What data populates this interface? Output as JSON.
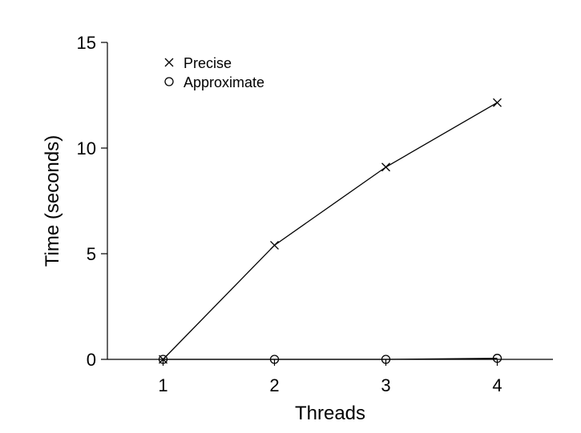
{
  "chart_data": {
    "type": "line",
    "xlabel": "Threads",
    "ylabel": "Time (seconds)",
    "x": [
      1,
      2,
      3,
      4
    ],
    "xlim": [
      0.5,
      4.5
    ],
    "ylim": [
      0,
      15
    ],
    "xticks": [
      "1",
      "2",
      "3",
      "4"
    ],
    "yticks": [
      "0",
      "5",
      "10",
      "15"
    ],
    "grid": false,
    "legend_position": "top-left",
    "series": [
      {
        "name": "Precise",
        "marker": "x",
        "values": [
          0.0,
          5.4,
          9.1,
          12.15
        ]
      },
      {
        "name": "Approximate",
        "marker": "circle",
        "values": [
          0.0,
          0.0,
          0.0,
          0.05
        ]
      }
    ],
    "colors": {
      "line": "#000000",
      "axis": "#000000"
    }
  }
}
